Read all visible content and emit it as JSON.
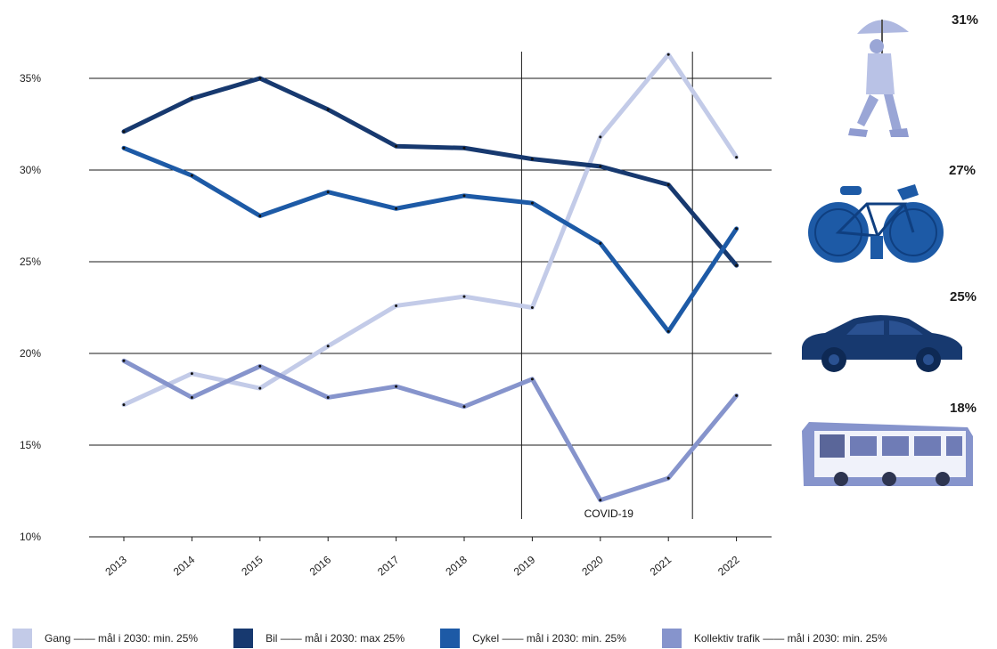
{
  "chart_data": {
    "type": "line",
    "categories": [
      "2013",
      "2014",
      "2015",
      "2016",
      "2017",
      "2018",
      "2019",
      "2020",
      "2021",
      "2022"
    ],
    "y_ticks": [
      "10%",
      "15%",
      "20%",
      "25%",
      "30%",
      "35%"
    ],
    "ylim": [
      10,
      37
    ],
    "grid": "horizontal",
    "series": [
      {
        "name": "Gang",
        "color": "#c3cbe8",
        "values": [
          17.2,
          18.9,
          18.1,
          20.4,
          22.6,
          23.1,
          22.5,
          31.8,
          36.3,
          30.7
        ]
      },
      {
        "name": "Bil",
        "color": "#17396f",
        "values": [
          32.1,
          33.9,
          35.0,
          33.3,
          31.3,
          31.2,
          30.6,
          30.2,
          29.2,
          24.8
        ]
      },
      {
        "name": "Cykel",
        "color": "#1d5aa6",
        "values": [
          31.2,
          29.7,
          27.5,
          28.8,
          27.9,
          28.6,
          28.2,
          26.0,
          21.2,
          26.8
        ]
      },
      {
        "name": "Kollektiv trafik",
        "color": "#8694cc",
        "values": [
          19.6,
          17.6,
          19.3,
          17.6,
          18.2,
          17.1,
          18.6,
          12.0,
          13.2,
          17.7
        ]
      }
    ],
    "annotations": [
      {
        "text": "COVID-19",
        "period": [
          "2019",
          "2021"
        ]
      }
    ],
    "legend_position": "bottom"
  },
  "side_labels": [
    {
      "pct": "31%",
      "icon": "pedestrian-icon",
      "color": "#c3cbe8"
    },
    {
      "pct": "27%",
      "icon": "bicycle-icon",
      "color": "#1d5aa6"
    },
    {
      "pct": "25%",
      "icon": "car-icon",
      "color": "#17396f"
    },
    {
      "pct": "18%",
      "icon": "bus-icon",
      "color": "#8694cc"
    }
  ],
  "legend": [
    {
      "label": "Gang —— mål i 2030: min. 25%",
      "color": "#c3cbe8"
    },
    {
      "label": "Bil —— mål i 2030: max 25%",
      "color": "#17396f"
    },
    {
      "label": "Cykel —— mål i 2030: min. 25%",
      "color": "#1d5aa6"
    },
    {
      "label": "Kollektiv trafik —— mål i 2030: min. 25%",
      "color": "#8694cc"
    }
  ]
}
